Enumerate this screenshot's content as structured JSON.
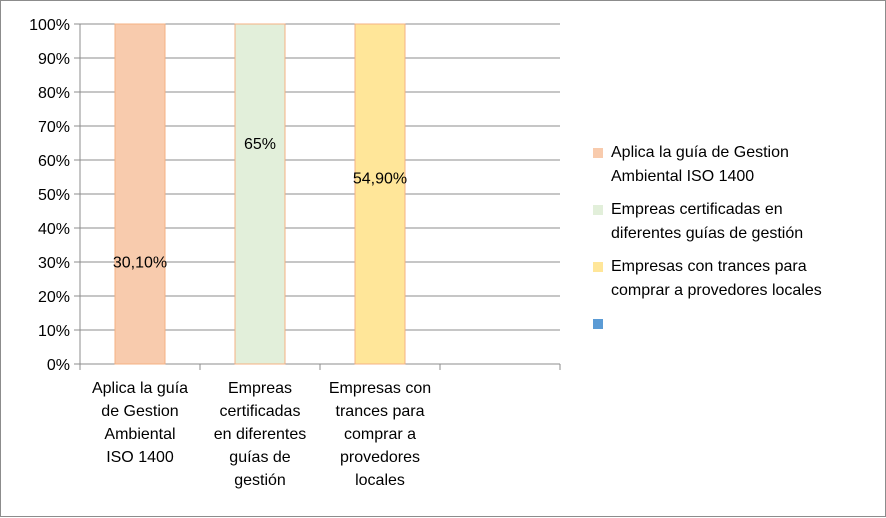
{
  "chart_data": {
    "type": "bar",
    "title": "",
    "xlabel": "",
    "ylabel": "",
    "ylim": [
      0,
      100
    ],
    "y_ticks": [
      "0%",
      "10%",
      "20%",
      "30%",
      "40%",
      "50%",
      "60%",
      "70%",
      "80%",
      "90%",
      "100%"
    ],
    "grid": true,
    "legend_position": "right",
    "categories": [
      "Aplica la guía de Gestion Ambiental ISO 1400",
      "Empreas certificadas en diferentes guías de gestión",
      "Empresas con trances para comprar a provedores locales",
      ""
    ],
    "category_label_lines": [
      [
        "Aplica la guía",
        "de Gestion",
        "Ambiental",
        "ISO 1400"
      ],
      [
        "Empreas",
        "certificadas",
        "en diferentes",
        "guías de",
        "gestión"
      ],
      [
        "Empresas con",
        "trances para",
        "comprar a",
        "provedores",
        "locales"
      ],
      []
    ],
    "values": [
      30.1,
      65,
      54.9,
      null
    ],
    "bar_fill_percent": [
      100,
      100,
      100,
      null
    ],
    "data_labels": [
      "30,10%",
      "65%",
      "54,90%",
      ""
    ],
    "colors": [
      "#f8cbad",
      "#e2efda",
      "#ffe699",
      "#5b9bd5"
    ],
    "bar_stroke": "#f4b183",
    "legend": [
      {
        "lines": [
          "Aplica la guía de Gestion",
          "Ambiental ISO 1400"
        ],
        "color": "#f8cbad"
      },
      {
        "lines": [
          "Empreas certificadas en",
          "diferentes guías de gestión"
        ],
        "color": "#e2efda"
      },
      {
        "lines": [
          "Empresas con trances para",
          "comprar a provedores locales"
        ],
        "color": "#ffe699"
      },
      {
        "lines": [],
        "color": "#5b9bd5"
      }
    ]
  }
}
